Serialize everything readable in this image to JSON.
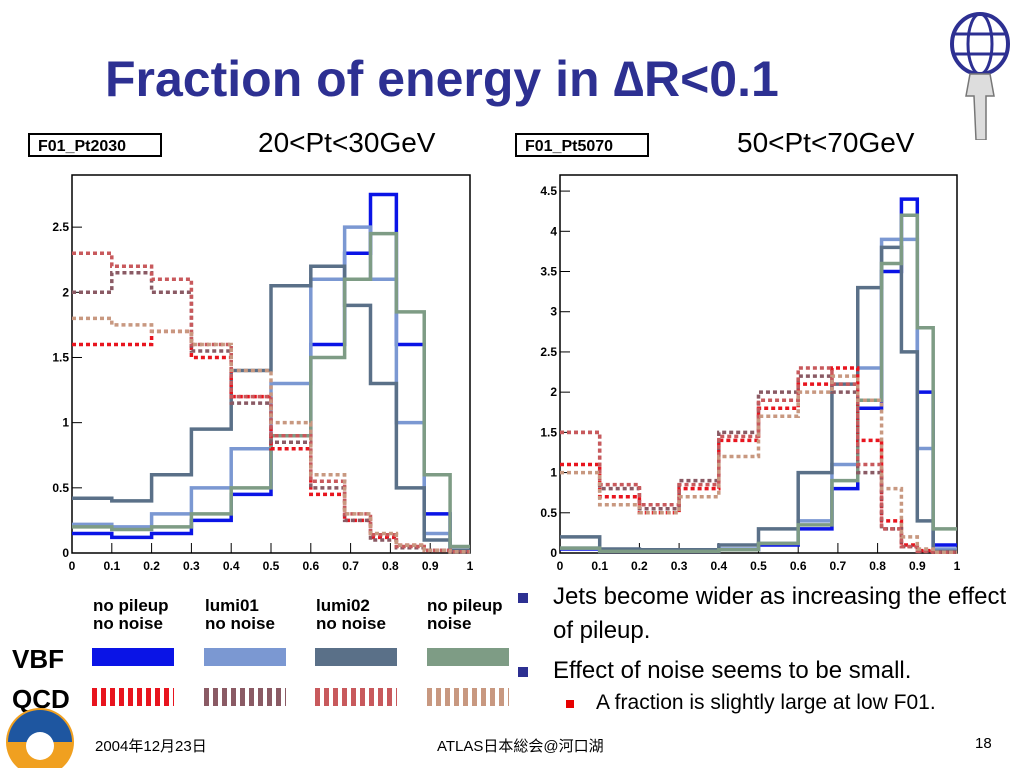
{
  "slide": {
    "title": "Fraction of energy in ∆R<0.1",
    "footer_date": "2004年12月23日",
    "footer_center": "ATLAS日本総会@河口湖",
    "page_number": "18"
  },
  "histograms": [
    {
      "name_box": "F01_Pt2030",
      "pt_label": "20<Pt<30GeV"
    },
    {
      "name_box": "F01_Pt5070",
      "pt_label": "50<Pt<70GeV"
    }
  ],
  "legend": {
    "columns": [
      {
        "line1": "no pileup",
        "line2": "no noise"
      },
      {
        "line1": "lumi01",
        "line2": "no noise"
      },
      {
        "line1": "lumi02",
        "line2": "no noise"
      },
      {
        "line1": "no pileup",
        "line2": "noise"
      }
    ],
    "rows": [
      {
        "label": "VBF",
        "colors": [
          "#0a14e6",
          "#7b98d2",
          "#5a7088",
          "#7e9c85"
        ],
        "style": "solid"
      },
      {
        "label": "QCD",
        "colors": [
          "#e8141e",
          "#8a5a64",
          "#c8595c",
          "#c89880"
        ],
        "style": "dashed"
      }
    ]
  },
  "bullets": [
    {
      "text": "Jets become wider as increasing the effect of pileup.",
      "level": 1
    },
    {
      "text": "Effect of noise seems to be small.",
      "level": 1
    },
    {
      "text": "A fraction is slightly large at low F01.",
      "level": 2
    }
  ],
  "chart_data": [
    {
      "type": "line",
      "title": "F01_Pt2030",
      "subtitle": "20<Pt<30GeV",
      "xlim": [
        0,
        1
      ],
      "ylim": [
        0,
        2.9
      ],
      "xticks": [
        "0",
        "0.1",
        "0.2",
        "0.3",
        "0.4",
        "0.5",
        "0.6",
        "0.7",
        "0.8",
        "0.9",
        "1"
      ],
      "yticks": [
        "0",
        "0.5",
        "1",
        "1.5",
        "2",
        "2.5"
      ],
      "x": [
        0.05,
        0.15,
        0.25,
        0.35,
        0.45,
        0.55,
        0.65,
        0.72,
        0.78,
        0.85,
        0.92,
        0.98
      ],
      "series": [
        {
          "name": "VBF no pileup no noise",
          "color": "#0a14e6",
          "dash": false,
          "values": [
            0.15,
            0.12,
            0.15,
            0.25,
            0.45,
            0.9,
            1.6,
            2.3,
            2.75,
            1.6,
            0.3,
            0.02
          ]
        },
        {
          "name": "VBF lumi01 no noise",
          "color": "#7b98d2",
          "dash": false,
          "values": [
            0.22,
            0.2,
            0.3,
            0.5,
            0.8,
            1.3,
            2.1,
            2.5,
            2.1,
            1.0,
            0.15,
            0.02
          ]
        },
        {
          "name": "VBF lumi02 no noise",
          "color": "#5a7088",
          "dash": false,
          "values": [
            0.42,
            0.4,
            0.6,
            0.95,
            1.4,
            2.05,
            2.2,
            1.9,
            1.3,
            0.5,
            0.1,
            0.02
          ]
        },
        {
          "name": "VBF no pileup noise",
          "color": "#7e9c85",
          "dash": false,
          "values": [
            0.2,
            0.18,
            0.2,
            0.3,
            0.5,
            0.9,
            1.5,
            2.1,
            2.45,
            1.85,
            0.6,
            0.05
          ]
        },
        {
          "name": "QCD no pileup no noise",
          "color": "#e8141e",
          "dash": true,
          "values": [
            1.6,
            1.6,
            1.7,
            1.5,
            1.2,
            0.8,
            0.45,
            0.25,
            0.12,
            0.06,
            0.02,
            0.01
          ]
        },
        {
          "name": "QCD lumi01 no noise",
          "color": "#8a5a64",
          "dash": true,
          "values": [
            2.0,
            2.15,
            2.0,
            1.55,
            1.15,
            0.85,
            0.5,
            0.25,
            0.1,
            0.04,
            0.02,
            0.01
          ]
        },
        {
          "name": "QCD lumi02 no noise",
          "color": "#c8595c",
          "dash": true,
          "values": [
            2.3,
            2.2,
            2.1,
            1.6,
            1.2,
            0.9,
            0.55,
            0.3,
            0.14,
            0.05,
            0.02,
            0.01
          ]
        },
        {
          "name": "QCD no pileup noise",
          "color": "#c89880",
          "dash": true,
          "values": [
            1.8,
            1.75,
            1.7,
            1.6,
            1.4,
            1.0,
            0.6,
            0.3,
            0.15,
            0.06,
            0.02,
            0.01
          ]
        }
      ]
    },
    {
      "type": "line",
      "title": "F01_Pt5070",
      "subtitle": "50<Pt<70GeV",
      "xlim": [
        0,
        1
      ],
      "ylim": [
        0,
        4.7
      ],
      "xticks": [
        "0",
        "0.1",
        "0.2",
        "0.3",
        "0.4",
        "0.5",
        "0.6",
        "0.7",
        "0.8",
        "0.9",
        "1"
      ],
      "yticks": [
        "0",
        "0.5",
        "1",
        "1.5",
        "2",
        "2.5",
        "3",
        "3.5",
        "4",
        "4.5"
      ],
      "x": [
        0.05,
        0.15,
        0.25,
        0.35,
        0.45,
        0.55,
        0.65,
        0.72,
        0.78,
        0.84,
        0.88,
        0.92,
        0.96
      ],
      "series": [
        {
          "name": "VBF no pileup no noise",
          "color": "#0a14e6",
          "dash": false,
          "values": [
            0.05,
            0.02,
            0.02,
            0.02,
            0.04,
            0.1,
            0.3,
            0.8,
            1.8,
            3.5,
            4.4,
            2.0,
            0.1
          ]
        },
        {
          "name": "VBF lumi01 no noise",
          "color": "#7b98d2",
          "dash": false,
          "values": [
            0.06,
            0.03,
            0.03,
            0.03,
            0.05,
            0.12,
            0.4,
            1.1,
            2.3,
            3.9,
            3.9,
            1.3,
            0.05
          ]
        },
        {
          "name": "VBF lumi02 no noise",
          "color": "#5a7088",
          "dash": false,
          "values": [
            0.2,
            0.05,
            0.04,
            0.04,
            0.1,
            0.3,
            1.0,
            2.1,
            3.3,
            3.8,
            2.5,
            0.4,
            0.02
          ]
        },
        {
          "name": "VBF no pileup noise",
          "color": "#7e9c85",
          "dash": false,
          "values": [
            0.06,
            0.02,
            0.02,
            0.02,
            0.04,
            0.12,
            0.35,
            0.9,
            1.9,
            3.6,
            4.2,
            2.8,
            0.3
          ]
        },
        {
          "name": "QCD no pileup no noise",
          "color": "#e8141e",
          "dash": true,
          "values": [
            1.1,
            0.7,
            0.5,
            0.8,
            1.4,
            1.8,
            2.1,
            2.3,
            1.4,
            0.4,
            0.1,
            0.03,
            0.01
          ]
        },
        {
          "name": "QCD lumi01 no noise",
          "color": "#8a5a64",
          "dash": true,
          "values": [
            1.5,
            0.8,
            0.55,
            0.9,
            1.5,
            2.0,
            2.2,
            2.0,
            1.0,
            0.3,
            0.08,
            0.02,
            0.01
          ]
        },
        {
          "name": "QCD lumi02 no noise",
          "color": "#c8595c",
          "dash": true,
          "values": [
            1.5,
            0.85,
            0.6,
            0.85,
            1.45,
            1.9,
            2.3,
            2.1,
            1.1,
            0.3,
            0.08,
            0.02,
            0.01
          ]
        },
        {
          "name": "QCD no pileup noise",
          "color": "#c89880",
          "dash": true,
          "values": [
            1.0,
            0.6,
            0.5,
            0.7,
            1.2,
            1.7,
            2.0,
            2.2,
            1.9,
            0.8,
            0.2,
            0.05,
            0.01
          ]
        }
      ]
    }
  ]
}
